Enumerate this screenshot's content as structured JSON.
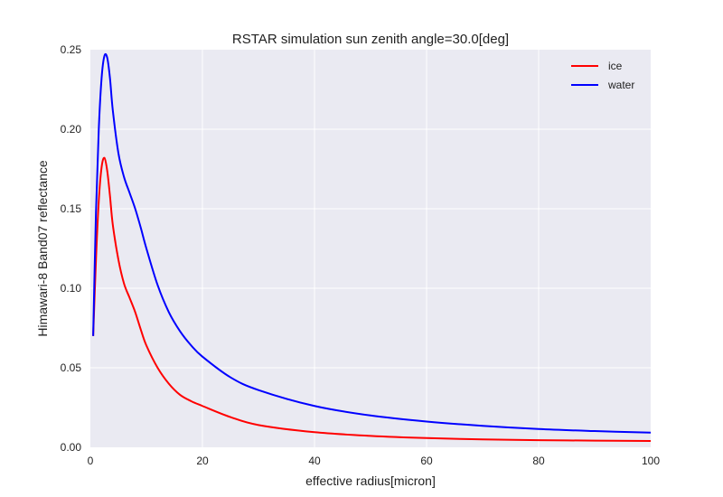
{
  "colors": {
    "plot_background": "#EAEAF2",
    "grid": "#FFFFFF",
    "text": "#222222"
  },
  "chart_data": {
    "type": "line",
    "title": "RSTAR simulation sun zenith angle=30.0[deg]",
    "xlabel": "effective radius[micron]",
    "ylabel": "Himawari-8 Band07 reflectance",
    "xlim": [
      0,
      100
    ],
    "ylim": [
      0.0,
      0.25
    ],
    "xticks": [
      0,
      20,
      40,
      60,
      80,
      100
    ],
    "xtick_labels": [
      "0",
      "20",
      "40",
      "60",
      "80",
      "100"
    ],
    "yticks": [
      0.0,
      0.05,
      0.1,
      0.15,
      0.2,
      0.25
    ],
    "ytick_labels": [
      "0.00",
      "0.05",
      "0.10",
      "0.15",
      "0.20",
      "0.25"
    ],
    "grid": true,
    "legend_position": "top-right",
    "series": [
      {
        "name": "ice",
        "color": "#FF0000",
        "x": [
          0.5,
          1.0,
          1.5,
          2.0,
          2.5,
          3.0,
          3.5,
          4.0,
          5.0,
          6.0,
          7.0,
          8.0,
          9.0,
          10.0,
          12.0,
          14.0,
          16.0,
          18.0,
          20.0,
          25.0,
          30.0,
          40.0,
          50.0,
          60.0,
          70.0,
          80.0,
          90.0,
          100.0
        ],
        "y": [
          0.07,
          0.118,
          0.155,
          0.176,
          0.182,
          0.174,
          0.158,
          0.14,
          0.118,
          0.103,
          0.094,
          0.085,
          0.074,
          0.064,
          0.05,
          0.04,
          0.033,
          0.029,
          0.026,
          0.019,
          0.014,
          0.0095,
          0.0072,
          0.0058,
          0.005,
          0.0045,
          0.0042,
          0.004
        ]
      },
      {
        "name": "water",
        "color": "#0000FF",
        "x": [
          0.5,
          1.0,
          1.5,
          2.0,
          2.5,
          3.0,
          3.5,
          4.0,
          5.0,
          6.0,
          7.0,
          8.0,
          9.0,
          10.0,
          12.0,
          14.0,
          16.0,
          18.0,
          20.0,
          25.0,
          30.0,
          40.0,
          50.0,
          60.0,
          70.0,
          80.0,
          90.0,
          100.0
        ],
        "y": [
          0.07,
          0.148,
          0.2,
          0.232,
          0.246,
          0.245,
          0.232,
          0.212,
          0.185,
          0.17,
          0.16,
          0.15,
          0.138,
          0.125,
          0.102,
          0.085,
          0.073,
          0.064,
          0.057,
          0.044,
          0.036,
          0.026,
          0.02,
          0.0162,
          0.0135,
          0.0115,
          0.0102,
          0.0092
        ]
      }
    ]
  }
}
